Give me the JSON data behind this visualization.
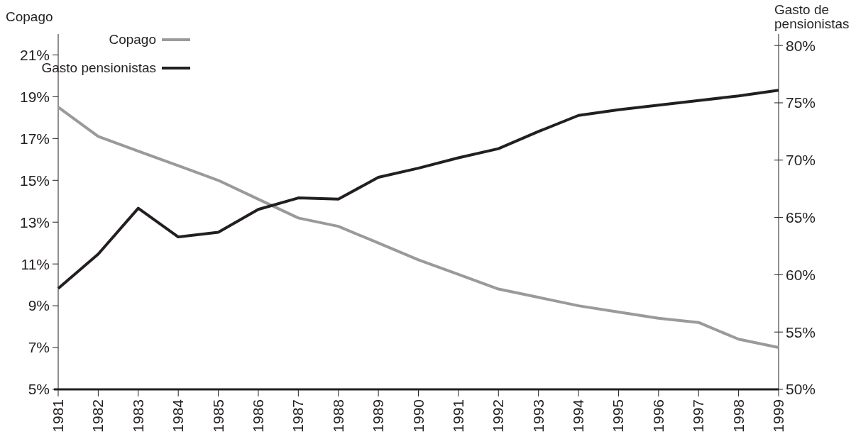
{
  "chart_data": {
    "type": "line",
    "ylabel": "Copago",
    "y2label": "Gasto de\npensionistas",
    "categories": [
      "1981",
      "1982",
      "1983",
      "1984",
      "1985",
      "1986",
      "1987",
      "1988",
      "1989",
      "1990",
      "1991",
      "1992",
      "1993",
      "1994",
      "1995",
      "1996",
      "1997",
      "1998",
      "1999"
    ],
    "series": [
      {
        "name": "Copago",
        "color": "#9a9a9a",
        "values": [
          18.5,
          17.1,
          16.4,
          15.7,
          15.0,
          14.1,
          13.2,
          12.8,
          12.0,
          11.2,
          10.5,
          9.8,
          9.4,
          9.0,
          8.7,
          8.4,
          8.2,
          7.4,
          7.0
        ]
      },
      {
        "name": "Gasto pensionistas",
        "color": "#231f20",
        "axis": "y2",
        "values": [
          58.8,
          61.8,
          65.8,
          63.3,
          63.7,
          65.7,
          66.7,
          66.6,
          68.5,
          69.3,
          70.2,
          71.0,
          72.5,
          73.9,
          74.4,
          74.8,
          75.2,
          75.6,
          76.1
        ]
      }
    ],
    "ylim": [
      5,
      22
    ],
    "yticks": [
      {
        "value": 5,
        "label": "5%"
      },
      {
        "value": 7,
        "label": "7%"
      },
      {
        "value": 9,
        "label": "9%"
      },
      {
        "value": 11,
        "label": "11%"
      },
      {
        "value": 13,
        "label": "13%"
      },
      {
        "value": 15,
        "label": "15%"
      },
      {
        "value": 17,
        "label": "17%"
      },
      {
        "value": 19,
        "label": "19%"
      },
      {
        "value": 21,
        "label": "21%"
      }
    ],
    "y2lim": [
      50,
      81
    ],
    "y2ticks": [
      {
        "value": 50,
        "label": "50%"
      },
      {
        "value": 55,
        "label": "55%"
      },
      {
        "value": 60,
        "label": "60%"
      },
      {
        "value": 65,
        "label": "65%"
      },
      {
        "value": 70,
        "label": "70%"
      },
      {
        "value": 75,
        "label": "75%"
      },
      {
        "value": 80,
        "label": "80%"
      }
    ],
    "legend": "top left",
    "grid": false,
    "marker": "none",
    "line_style": "solid"
  }
}
